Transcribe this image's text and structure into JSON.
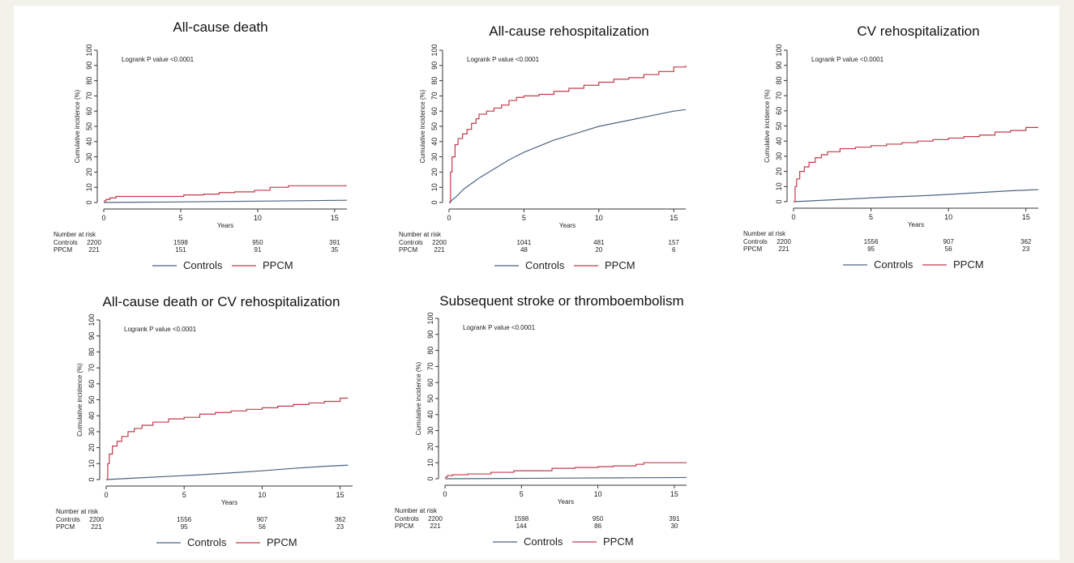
{
  "figure": {
    "colors": {
      "controls": "#4a6580",
      "ppcm": "#c23b4b",
      "axis": "#333333"
    }
  },
  "chart_data": [
    {
      "type": "line",
      "title": "All-cause death",
      "xlabel": "Years",
      "ylabel": "Cumulative incidence (%)",
      "annotation": "Logrank P value <0.0001",
      "xlim": [
        0,
        15.8
      ],
      "ylim": [
        0,
        100
      ],
      "x_ticks": [
        0,
        5,
        10,
        15
      ],
      "y_ticks": [
        0,
        10,
        20,
        30,
        40,
        50,
        60,
        70,
        80,
        90,
        100
      ],
      "series": [
        {
          "name": "Controls",
          "color": "#4a6580",
          "step": false,
          "x": [
            0,
            2,
            4,
            6,
            8,
            10,
            12,
            14,
            15.8
          ],
          "y": [
            0,
            0.2,
            0.3,
            0.5,
            0.7,
            0.9,
            1.1,
            1.3,
            1.5
          ]
        },
        {
          "name": "PPCM",
          "color": "#c23b4b",
          "step": true,
          "x": [
            0,
            0.15,
            0.4,
            0.8,
            5,
            5.2,
            6.5,
            7.5,
            8.5,
            9.8,
            10.8,
            12,
            15.8
          ],
          "y": [
            1,
            2,
            3,
            4,
            4,
            5,
            5.5,
            6.5,
            7,
            8,
            10,
            11,
            11
          ]
        }
      ],
      "risk_table": {
        "heading": "Number at risk",
        "rows": [
          {
            "label": "Controls",
            "values": [
              "2200",
              "1598",
              "950",
              "391"
            ]
          },
          {
            "label": "PPCM",
            "values": [
              "221",
              "151",
              "91",
              "35"
            ]
          }
        ]
      },
      "legend": {
        "placement": "bottom",
        "items": [
          "Controls",
          "PPCM"
        ]
      }
    },
    {
      "type": "line",
      "title": "All-cause rehospitalization",
      "xlabel": "Years",
      "ylabel": "Cumulative incidence (%)",
      "annotation": "Logrank P value <0.0001",
      "xlim": [
        0,
        15.8
      ],
      "ylim": [
        0,
        100
      ],
      "x_ticks": [
        0,
        5,
        10,
        15
      ],
      "y_ticks": [
        0,
        10,
        20,
        30,
        40,
        50,
        60,
        70,
        80,
        90,
        100
      ],
      "series": [
        {
          "name": "Controls",
          "color": "#4a6580",
          "step": false,
          "x": [
            0,
            0.5,
            1,
            2,
            3,
            4,
            5,
            6,
            7,
            8,
            9,
            10,
            11,
            12,
            13,
            14,
            15,
            15.8
          ],
          "y": [
            0,
            4,
            9,
            16,
            22,
            28,
            33,
            37,
            41,
            44,
            47,
            50,
            52,
            54,
            56,
            58,
            60,
            61
          ]
        },
        {
          "name": "PPCM",
          "color": "#c23b4b",
          "step": true,
          "x": [
            0,
            0.1,
            0.2,
            0.4,
            0.6,
            0.9,
            1.2,
            1.5,
            1.8,
            2,
            2.5,
            3,
            3.5,
            4,
            4.5,
            5,
            6,
            7,
            8,
            9,
            10,
            11,
            12,
            13,
            14,
            15,
            15.8
          ],
          "y": [
            0,
            20,
            30,
            38,
            42,
            45,
            48,
            52,
            55,
            58,
            60,
            62,
            64,
            67,
            69,
            70,
            71,
            73,
            75,
            77,
            79,
            81,
            82,
            84,
            86,
            89,
            90
          ]
        }
      ],
      "risk_table": {
        "heading": "Number at risk",
        "rows": [
          {
            "label": "Controls",
            "values": [
              "2200",
              "1041",
              "481",
              "157"
            ]
          },
          {
            "label": "PPCM",
            "values": [
              "221",
              "48",
              "20",
              "6"
            ]
          }
        ]
      },
      "legend": {
        "placement": "bottom",
        "items": [
          "Controls",
          "PPCM"
        ]
      }
    },
    {
      "type": "line",
      "title": "CV rehospitalization",
      "xlabel": "Years",
      "ylabel": "Cumulative incidence (%)",
      "annotation": "Logrank P value <0.0001",
      "xlim": [
        0,
        15.8
      ],
      "ylim": [
        0,
        100
      ],
      "x_ticks": [
        0,
        5,
        10,
        15
      ],
      "y_ticks": [
        0,
        10,
        20,
        30,
        40,
        50,
        60,
        70,
        80,
        90,
        100
      ],
      "series": [
        {
          "name": "Controls",
          "color": "#4a6580",
          "step": false,
          "x": [
            0,
            2,
            4,
            6,
            8,
            10,
            12,
            14,
            15.8
          ],
          "y": [
            0,
            1,
            2,
            3,
            3.8,
            4.8,
            6,
            7.2,
            8
          ]
        },
        {
          "name": "PPCM",
          "color": "#c23b4b",
          "step": true,
          "x": [
            0,
            0.1,
            0.2,
            0.4,
            0.7,
            1,
            1.4,
            1.8,
            2.2,
            3,
            4,
            5,
            6,
            7,
            8,
            9,
            10,
            11,
            12,
            13,
            14,
            15,
            15.8
          ],
          "y": [
            0,
            10,
            15,
            20,
            23,
            26,
            29,
            31,
            33,
            35,
            36,
            37,
            38,
            39,
            40,
            41,
            42,
            43,
            44,
            46,
            47,
            49,
            49
          ]
        }
      ],
      "risk_table": {
        "heading": "Number at risk",
        "rows": [
          {
            "label": "Controls",
            "values": [
              "2200",
              "1556",
              "907",
              "362"
            ]
          },
          {
            "label": "PPCM",
            "values": [
              "221",
              "95",
              "56",
              "23"
            ]
          }
        ]
      },
      "legend": {
        "placement": "bottom",
        "items": [
          "Controls",
          "PPCM"
        ]
      }
    },
    {
      "type": "line",
      "title": "All-cause death or CV  rehospitalization",
      "xlabel": "Years",
      "ylabel": "Cumulative incidence (%)",
      "annotation": "Logrank P value <0.0001",
      "xlim": [
        0,
        15.8
      ],
      "ylim": [
        0,
        100
      ],
      "x_ticks": [
        0,
        5,
        10,
        15
      ],
      "y_ticks": [
        0,
        10,
        20,
        30,
        40,
        50,
        60,
        70,
        80,
        90,
        100
      ],
      "series": [
        {
          "name": "Controls",
          "color": "#4a6580",
          "step": false,
          "x": [
            0,
            2,
            4,
            6,
            8,
            10,
            12,
            14,
            15.5
          ],
          "y": [
            0,
            1,
            2,
            3,
            4.2,
            5.5,
            7,
            8.3,
            9
          ]
        },
        {
          "name": "PPCM",
          "color": "#c23b4b",
          "step": true,
          "x": [
            0,
            0.1,
            0.2,
            0.4,
            0.7,
            1,
            1.4,
            1.8,
            2.3,
            3,
            4,
            5,
            6,
            7,
            8,
            9,
            10,
            11,
            12,
            13,
            14,
            15,
            15.5
          ],
          "y": [
            0,
            10,
            16,
            21,
            24,
            27,
            30,
            32,
            34,
            36,
            38,
            39,
            41,
            42,
            43,
            44,
            45,
            46,
            47,
            48,
            49,
            51,
            51
          ]
        }
      ],
      "risk_table": {
        "heading": "Number at risk",
        "rows": [
          {
            "label": "Controls",
            "values": [
              "2200",
              "1556",
              "907",
              "362"
            ]
          },
          {
            "label": "PPCM",
            "values": [
              "221",
              "95",
              "56",
              "23"
            ]
          }
        ]
      },
      "legend": {
        "placement": "bottom",
        "items": [
          "Controls",
          "PPCM"
        ]
      }
    },
    {
      "type": "line",
      "title": "Subsequent stroke or thromboembolism",
      "xlabel": "Years",
      "ylabel": "Cumulative incidence (%)",
      "annotation": "Logrank P value <0.0001",
      "xlim": [
        0,
        15.8
      ],
      "ylim": [
        0,
        100
      ],
      "x_ticks": [
        0,
        5,
        10,
        15
      ],
      "y_ticks": [
        0,
        10,
        20,
        30,
        40,
        50,
        60,
        70,
        80,
        90,
        100
      ],
      "series": [
        {
          "name": "Controls",
          "color": "#4a6580",
          "step": false,
          "x": [
            0,
            4,
            8,
            12,
            15.8
          ],
          "y": [
            0,
            0.2,
            0.4,
            0.6,
            0.8
          ]
        },
        {
          "name": "PPCM",
          "color": "#c23b4b",
          "step": true,
          "x": [
            0,
            0.15,
            0.5,
            1.5,
            3,
            4.5,
            7,
            8.5,
            10,
            11,
            12.5,
            13,
            15.8
          ],
          "y": [
            1,
            2,
            2.5,
            3,
            4,
            5,
            6.5,
            7,
            7.5,
            8,
            9,
            10,
            10
          ]
        }
      ],
      "risk_table": {
        "heading": "Number at risk",
        "rows": [
          {
            "label": "Controls",
            "values": [
              "2200",
              "1598",
              "950",
              "391"
            ]
          },
          {
            "label": "PPCM",
            "values": [
              "221",
              "144",
              "86",
              "30"
            ]
          }
        ]
      },
      "legend": {
        "placement": "bottom",
        "items": [
          "Controls",
          "PPCM"
        ]
      }
    }
  ]
}
